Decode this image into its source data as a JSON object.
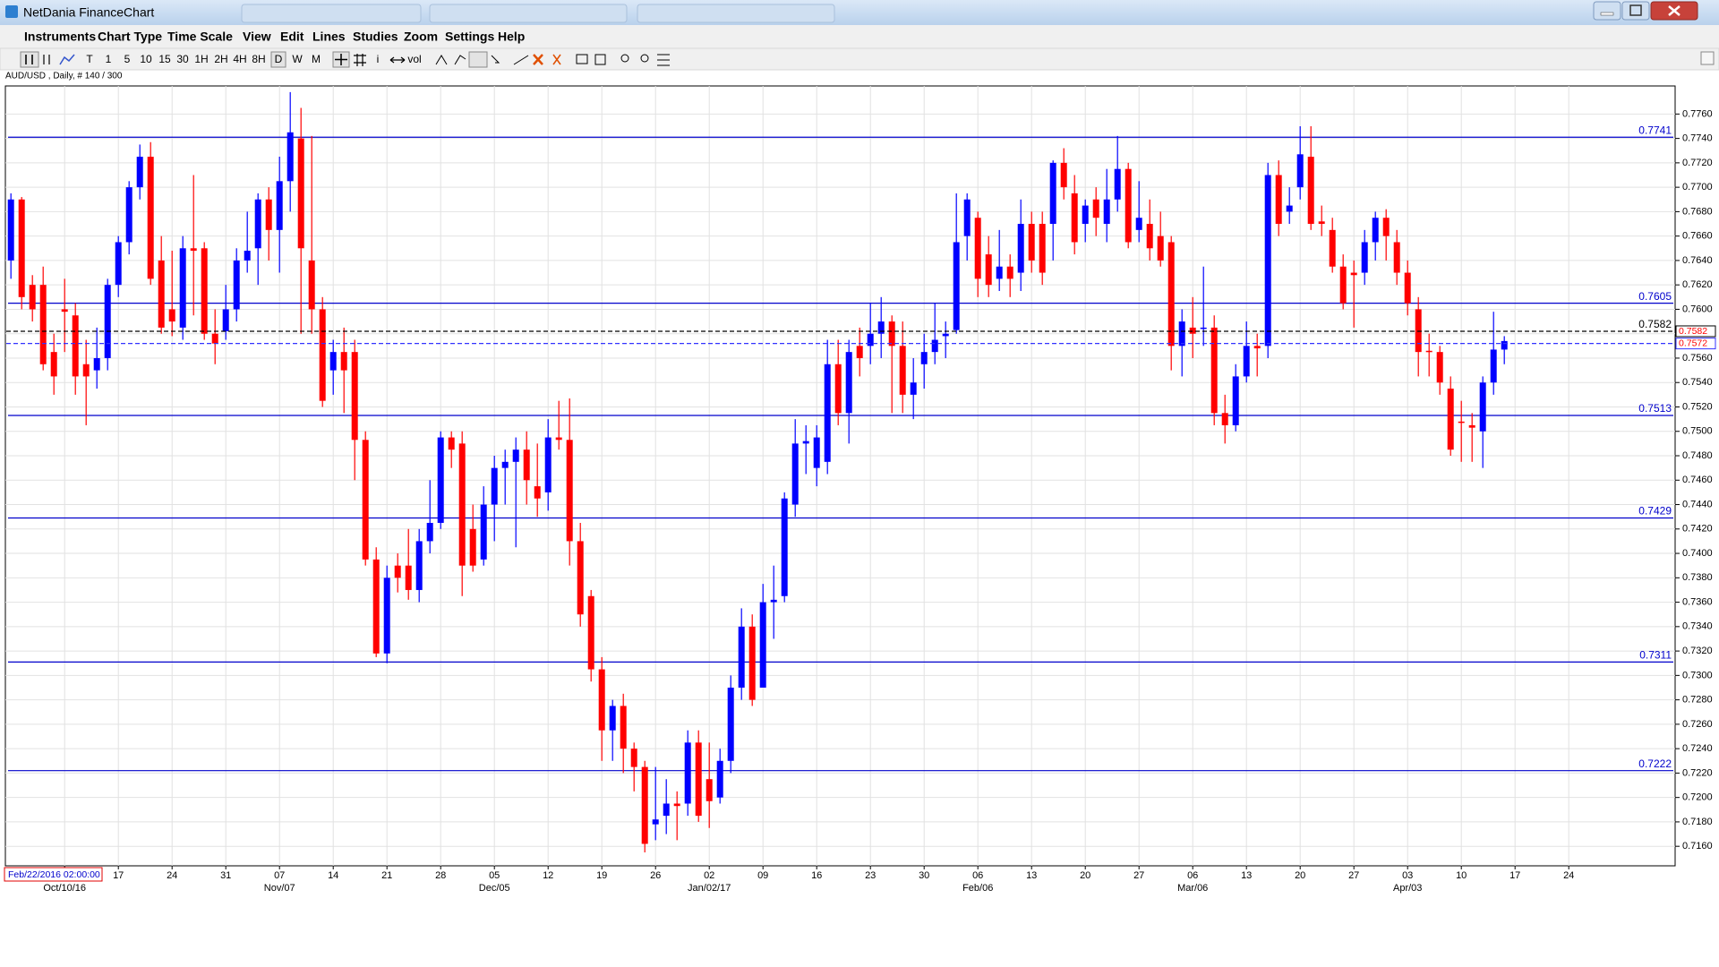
{
  "window": {
    "title": "NetDania FinanceChart"
  },
  "menu": [
    "Instruments",
    "Chart Type",
    "Time Scale",
    "View",
    "Edit",
    "Lines",
    "Studies",
    "Zoom",
    "Settings",
    "Help"
  ],
  "toolbar": {
    "timeframes": [
      "T",
      "1",
      "5",
      "10",
      "15",
      "30",
      "1H",
      "2H",
      "4H",
      "8H",
      "D",
      "W",
      "M"
    ],
    "tools": [
      "i",
      "vol"
    ]
  },
  "chart_data": {
    "type": "candlestick",
    "symbol_info": "AUD/USD , Daily, # 140 / 300",
    "cursor_label": "Feb/22/2016 02:00:00",
    "up_color": "#0000ff",
    "down_color": "#ff0000",
    "grid": true,
    "categories": [
      null,
      null,
      null,
      null,
      null,
      null,
      null,
      null,
      null,
      null,
      "17",
      null,
      null,
      null,
      null,
      "24",
      null,
      null,
      null,
      null,
      "31",
      null,
      null,
      null,
      null,
      "07",
      null,
      null,
      null,
      null,
      "14",
      null,
      null,
      null,
      null,
      "21",
      null,
      null,
      null,
      null,
      "28",
      null,
      null,
      null,
      null,
      "05",
      null,
      null,
      null,
      null,
      "12",
      null,
      null,
      null,
      null,
      "19",
      null,
      null,
      null,
      null,
      "26",
      null,
      null,
      null,
      null,
      "02",
      null,
      null,
      null,
      null,
      "09",
      null,
      null,
      null,
      null,
      "16",
      null,
      null,
      null,
      null,
      "23",
      null,
      null,
      null,
      null,
      "30",
      null,
      null,
      null,
      null,
      "06",
      null,
      null,
      null,
      null,
      "13",
      null,
      null,
      null,
      null,
      "20",
      null,
      null,
      null,
      null,
      "27",
      null,
      null,
      null,
      null,
      "06",
      null,
      null,
      null,
      null,
      "13",
      null,
      null,
      null,
      null,
      "20",
      null,
      null,
      null,
      null,
      "27",
      null,
      null,
      null,
      null,
      "03",
      null,
      null,
      null,
      null,
      "10",
      null,
      null,
      null,
      null,
      "17",
      null,
      null,
      null,
      null,
      "24",
      null,
      null,
      null,
      null,
      null,
      null,
      null,
      null,
      null
    ],
    "period_labels": [
      null,
      null,
      null,
      null,
      null,
      "Oct/10/16",
      null,
      null,
      null,
      null,
      null,
      null,
      null,
      null,
      null,
      null,
      null,
      null,
      null,
      null,
      null,
      null,
      null,
      null,
      null,
      "Nov/07",
      null,
      null,
      null,
      null,
      null,
      null,
      null,
      null,
      null,
      null,
      null,
      null,
      null,
      null,
      null,
      null,
      null,
      null,
      null,
      "Dec/05",
      null,
      null,
      null,
      null,
      null,
      null,
      null,
      null,
      null,
      null,
      null,
      null,
      null,
      null,
      null,
      null,
      null,
      null,
      null,
      "Jan/02/17",
      null,
      null,
      null,
      null,
      null,
      null,
      null,
      null,
      null,
      null,
      null,
      null,
      null,
      null,
      null,
      null,
      null,
      null,
      null,
      null,
      null,
      null,
      null,
      null,
      "Feb/06",
      null,
      null,
      null,
      null,
      null,
      null,
      null,
      null,
      null,
      null,
      null,
      null,
      null,
      null,
      null,
      null,
      null,
      null,
      null,
      "Mar/06",
      null,
      null,
      null,
      null,
      null,
      null,
      null,
      null,
      null,
      null,
      null,
      null,
      null,
      null,
      null,
      null,
      null,
      null,
      null,
      "Apr/03",
      null,
      null,
      null,
      null,
      null,
      null,
      null,
      null,
      null,
      null,
      null,
      null,
      null,
      null,
      null,
      null,
      null,
      null,
      null,
      null,
      null,
      null,
      null,
      null
    ],
    "open": [
      0.764,
      0.769,
      0.762,
      0.762,
      0.7565,
      0.76,
      0.7595,
      0.7555,
      0.755,
      0.756,
      0.762,
      0.7655,
      0.77,
      0.7725,
      0.764,
      0.76,
      0.7585,
      0.765,
      0.765,
      0.758,
      0.7582,
      0.76,
      0.764,
      0.765,
      0.769,
      0.7665,
      0.7705,
      0.774,
      0.764,
      0.76,
      0.755,
      0.7565,
      0.7565,
      0.7493,
      0.7395,
      0.7318,
      0.739,
      0.739,
      0.737,
      0.741,
      0.7425,
      0.7495,
      0.749,
      0.742,
      0.7395,
      0.744,
      0.747,
      0.7475,
      0.7485,
      0.7455,
      0.745,
      0.7495,
      0.7493,
      0.741,
      0.7365,
      0.7305,
      0.7255,
      0.7275,
      0.724,
      0.7225,
      0.7178,
      0.7185,
      0.7195,
      0.7195,
      0.7245,
      0.7215,
      0.72,
      0.723,
      0.729,
      0.734,
      0.729,
      0.736,
      0.7365,
      0.744,
      0.749,
      0.747,
      0.7475,
      0.7555,
      0.7515,
      0.757,
      0.757,
      0.758,
      0.759,
      0.757,
      0.753,
      0.7555,
      0.7565,
      0.7578,
      0.7583,
      0.766,
      0.7675,
      0.7645,
      0.7625,
      0.7635,
      0.763,
      0.767,
      0.767,
      0.767,
      0.772,
      0.7695,
      0.767,
      0.769,
      0.767,
      0.769,
      0.7715,
      0.7665,
      0.767,
      0.766,
      0.7655,
      0.757,
      0.7585,
      0.7585,
      0.7585,
      0.7515,
      0.7505,
      0.7545,
      0.757,
      0.757,
      0.771,
      0.768,
      0.77,
      0.7725,
      0.7672,
      0.7665,
      0.7635,
      0.763,
      0.763,
      0.7655,
      0.7675,
      0.7655,
      0.763,
      0.76,
      0.7566,
      0.7565,
      0.7535,
      0.7508,
      0.7505,
      0.75,
      0.754,
      0.7567,
      null,
      null,
      null,
      null,
      null,
      null,
      null,
      null,
      null,
      null,
      null,
      null,
      null,
      null,
      null
    ],
    "high": [
      0.7695,
      0.7692,
      0.7628,
      0.7635,
      0.758,
      0.7625,
      0.7605,
      0.7575,
      0.7585,
      0.7625,
      0.766,
      0.7705,
      0.7735,
      0.7737,
      0.766,
      0.7648,
      0.766,
      0.771,
      0.7655,
      0.76,
      0.762,
      0.765,
      0.768,
      0.7695,
      0.77,
      0.7725,
      0.7778,
      0.7765,
      0.7742,
      0.761,
      0.7575,
      0.7585,
      0.7575,
      0.75,
      0.7405,
      0.739,
      0.74,
      0.742,
      0.742,
      0.746,
      0.75,
      0.75,
      0.75,
      0.744,
      0.7455,
      0.748,
      0.7485,
      0.7495,
      0.75,
      0.749,
      0.751,
      0.7525,
      0.7527,
      0.7425,
      0.737,
      0.7315,
      0.728,
      0.7285,
      0.7245,
      0.723,
      0.7225,
      0.7215,
      0.7205,
      0.7255,
      0.7255,
      0.7245,
      0.724,
      0.73,
      0.7355,
      0.735,
      0.7375,
      0.739,
      0.745,
      0.751,
      0.7505,
      0.7505,
      0.7575,
      0.7575,
      0.7575,
      0.7585,
      0.7605,
      0.761,
      0.7595,
      0.759,
      0.756,
      0.758,
      0.7605,
      0.759,
      0.7695,
      0.7695,
      0.768,
      0.766,
      0.7665,
      0.7645,
      0.769,
      0.768,
      0.768,
      0.7722,
      0.7732,
      0.771,
      0.769,
      0.77,
      0.7715,
      0.7742,
      0.772,
      0.7705,
      0.769,
      0.768,
      0.766,
      0.76,
      0.761,
      0.7635,
      0.7595,
      0.753,
      0.7555,
      0.759,
      0.758,
      0.772,
      0.7722,
      0.77,
      0.775,
      0.775,
      0.7685,
      0.7675,
      0.7645,
      0.764,
      0.7665,
      0.768,
      0.7682,
      0.7665,
      0.764,
      0.761,
      0.758,
      0.757,
      0.7545,
      0.7525,
      0.7515,
      0.7545,
      0.7598,
      0.7578,
      null,
      null,
      null,
      null,
      null,
      null,
      null,
      null,
      null,
      null,
      null,
      null,
      null,
      null,
      null
    ],
    "low": [
      0.7625,
      0.76,
      0.759,
      0.755,
      0.753,
      0.7565,
      0.753,
      0.7505,
      0.7535,
      0.755,
      0.761,
      0.7645,
      0.769,
      0.762,
      0.758,
      0.7578,
      0.7575,
      0.7595,
      0.7575,
      0.7555,
      0.7575,
      0.759,
      0.763,
      0.762,
      0.764,
      0.763,
      0.768,
      0.758,
      0.758,
      0.752,
      0.753,
      0.7515,
      0.746,
      0.739,
      0.7315,
      0.731,
      0.7368,
      0.7362,
      0.736,
      0.74,
      0.742,
      0.747,
      0.7365,
      0.7385,
      0.739,
      0.741,
      0.744,
      0.7405,
      0.744,
      0.743,
      0.7435,
      0.7485,
      0.739,
      0.734,
      0.7295,
      0.723,
      0.723,
      0.722,
      0.7205,
      0.7155,
      0.7165,
      0.717,
      0.7165,
      0.7185,
      0.718,
      0.7175,
      0.7195,
      0.722,
      0.728,
      0.7275,
      0.729,
      0.733,
      0.736,
      0.743,
      0.7465,
      0.7455,
      0.7465,
      0.7505,
      0.749,
      0.7545,
      0.7555,
      0.756,
      0.7515,
      0.7515,
      0.751,
      0.7535,
      0.7555,
      0.756,
      0.758,
      0.764,
      0.761,
      0.761,
      0.7615,
      0.761,
      0.7615,
      0.763,
      0.762,
      0.764,
      0.769,
      0.7645,
      0.7655,
      0.766,
      0.7655,
      0.768,
      0.765,
      0.7655,
      0.764,
      0.7635,
      0.755,
      0.7545,
      0.756,
      0.757,
      0.7505,
      0.749,
      0.75,
      0.754,
      0.7545,
      0.756,
      0.766,
      0.767,
      0.769,
      0.7665,
      0.766,
      0.763,
      0.76,
      0.7585,
      0.762,
      0.764,
      0.764,
      0.762,
      0.7595,
      0.7545,
      0.7545,
      0.753,
      0.748,
      0.7475,
      0.7475,
      0.747,
      0.753,
      0.7555,
      null,
      null,
      null,
      null,
      null,
      null,
      null,
      null,
      null,
      null,
      null,
      null,
      null,
      null,
      null
    ],
    "close": [
      0.769,
      0.761,
      0.76,
      0.7555,
      0.7545,
      0.7598,
      0.7545,
      0.7545,
      0.756,
      0.762,
      0.7655,
      0.77,
      0.7725,
      0.7625,
      0.7585,
      0.759,
      0.765,
      0.7648,
      0.758,
      0.7572,
      0.76,
      0.764,
      0.7648,
      0.769,
      0.7665,
      0.7705,
      0.7745,
      0.765,
      0.76,
      0.7525,
      0.7565,
      0.755,
      0.7493,
      0.7395,
      0.7318,
      0.738,
      0.738,
      0.737,
      0.741,
      0.7425,
      0.7495,
      0.7485,
      0.739,
      0.739,
      0.744,
      0.747,
      0.7475,
      0.7485,
      0.746,
      0.7445,
      0.7495,
      0.7493,
      0.741,
      0.735,
      0.7305,
      0.7255,
      0.7275,
      0.724,
      0.7225,
      0.7162,
      0.7182,
      0.7195,
      0.7193,
      0.7245,
      0.7185,
      0.7197,
      0.723,
      0.729,
      0.734,
      0.728,
      0.736,
      0.7362,
      0.7445,
      0.749,
      0.7492,
      0.7495,
      0.7555,
      0.7515,
      0.7565,
      0.756,
      0.758,
      0.759,
      0.757,
      0.753,
      0.754,
      0.7565,
      0.7575,
      0.758,
      0.7655,
      0.769,
      0.7625,
      0.762,
      0.7635,
      0.7625,
      0.767,
      0.764,
      0.763,
      0.772,
      0.77,
      0.7655,
      0.7685,
      0.7675,
      0.769,
      0.7715,
      0.7655,
      0.7675,
      0.765,
      0.764,
      0.757,
      0.759,
      0.758,
      0.7585,
      0.7515,
      0.7505,
      0.7545,
      0.757,
      0.7568,
      0.771,
      0.767,
      0.7685,
      0.7727,
      0.767,
      0.767,
      0.7635,
      0.7605,
      0.7628,
      0.7655,
      0.7675,
      0.766,
      0.763,
      0.7605,
      0.7565,
      0.7565,
      0.754,
      0.7485,
      0.7507,
      0.7503,
      0.754,
      0.7567,
      0.7574,
      null,
      null,
      null,
      null,
      null,
      null,
      null,
      null,
      null,
      null,
      null,
      null,
      null,
      null,
      null
    ],
    "ylim": [
      0.7144,
      0.7783
    ],
    "yticks": [
      {
        "value": 0.716,
        "label": "0.7160"
      },
      {
        "value": 0.718,
        "label": "0.7180"
      },
      {
        "value": 0.72,
        "label": "0.7200"
      },
      {
        "value": 0.722,
        "label": "0.7220"
      },
      {
        "value": 0.724,
        "label": "0.7240"
      },
      {
        "value": 0.726,
        "label": "0.7260"
      },
      {
        "value": 0.728,
        "label": "0.7280"
      },
      {
        "value": 0.73,
        "label": "0.7300"
      },
      {
        "value": 0.732,
        "label": "0.7320"
      },
      {
        "value": 0.734,
        "label": "0.7340"
      },
      {
        "value": 0.736,
        "label": "0.7360"
      },
      {
        "value": 0.738,
        "label": "0.7380"
      },
      {
        "value": 0.74,
        "label": "0.7400"
      },
      {
        "value": 0.742,
        "label": "0.7420"
      },
      {
        "value": 0.744,
        "label": "0.7440"
      },
      {
        "value": 0.746,
        "label": "0.7460"
      },
      {
        "value": 0.748,
        "label": "0.7480"
      },
      {
        "value": 0.75,
        "label": "0.7500"
      },
      {
        "value": 0.752,
        "label": "0.7520"
      },
      {
        "value": 0.754,
        "label": "0.7540"
      },
      {
        "value": 0.756,
        "label": "0.7560"
      },
      {
        "value": 0.758,
        "label": "0.7580"
      },
      {
        "value": 0.76,
        "label": "0.7600"
      },
      {
        "value": 0.762,
        "label": "0.7620"
      },
      {
        "value": 0.764,
        "label": "0.7640"
      },
      {
        "value": 0.766,
        "label": "0.7660"
      },
      {
        "value": 0.768,
        "label": "0.7680"
      },
      {
        "value": 0.77,
        "label": "0.7700"
      },
      {
        "value": 0.772,
        "label": "0.7720"
      },
      {
        "value": 0.774,
        "label": "0.7740"
      },
      {
        "value": 0.776,
        "label": "0.7760"
      }
    ],
    "levels": [
      {
        "value": 0.7741,
        "color": "#0000cc"
      },
      {
        "value": 0.7605,
        "color": "#0000cc"
      },
      {
        "value": 0.7513,
        "color": "#0000cc"
      },
      {
        "value": 0.7429,
        "color": "#0000cc"
      },
      {
        "value": 0.7311,
        "color": "#0000cc"
      },
      {
        "value": 0.7222,
        "color": "#0000cc"
      }
    ],
    "price_lines": [
      {
        "value": 0.7582,
        "color": "#000000"
      },
      {
        "value": 0.7572,
        "color": "#3333ff"
      }
    ]
  }
}
